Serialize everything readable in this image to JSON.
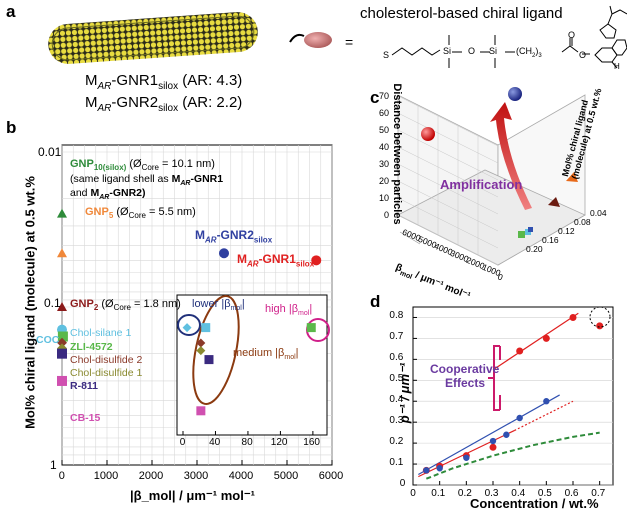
{
  "panels": {
    "a": "a",
    "b": "b",
    "c": "c",
    "d": "d"
  },
  "panel_a": {
    "ligand_title": "cholesterol-based chiral ligand",
    "eq": "=",
    "gnr1_label": "M",
    "gnr1_sub": "AR",
    "gnr1_name": "-GNR1",
    "gnr1_silox": "silox",
    "gnr1_ar": "(AR: 4.3)",
    "gnr2_label": "M",
    "gnr2_sub": "AR",
    "gnr2_name": "-GNR2",
    "gnr2_silox": "silox",
    "gnr2_ar": "(AR: 2.2)",
    "chem_S": "S",
    "chem_O1": "O",
    "chem_Si1": "Si",
    "chem_O2": "O",
    "chem_Si2": "Si",
    "chem_chain": "(CH",
    "chem_chain_sub": "2",
    "chem_chain_end": ")",
    "chem_chain_n": "3",
    "chem_O3": "O",
    "chem_O4": "O",
    "chem_H": "H"
  },
  "chart_data": [
    {
      "type": "scatter",
      "panel": "b",
      "xlabel": "|β_mol| / μm⁻¹ mol⁻¹",
      "ylabel": "Mol% chiral ligand (molecule) at 0.5 wt.%",
      "x_ticks": [
        "0",
        "1000",
        "2000",
        "3000",
        "4000",
        "5000",
        "6000"
      ],
      "y_ticks": [
        "0.01",
        "0.1",
        "1"
      ],
      "xlim": [
        0,
        6000
      ],
      "ylim": [
        0.01,
        1
      ],
      "yscale": "log-inverted",
      "points": [
        {
          "name": "GNP10(silox)",
          "x": 0,
          "y": 0.025,
          "color": "#2e8b3a",
          "marker": "triangle"
        },
        {
          "name": "GNP5",
          "x": 0,
          "y": 0.045,
          "color": "#f0883a",
          "marker": "triangle"
        },
        {
          "name": "GNP2",
          "x": 0,
          "y": 0.1,
          "color": "#8b1a1a",
          "marker": "triangle"
        },
        {
          "name": "MAR-GNR2silox",
          "x": 3600,
          "y": 0.045,
          "color": "#3040a0",
          "marker": "circle"
        },
        {
          "name": "MAR-GNR1silox",
          "x": 5650,
          "y": 0.05,
          "color": "#e02020",
          "marker": "circle"
        },
        {
          "name": "Chol-silane 1",
          "x": 0,
          "y": 0.14,
          "color": "#5fc0e0",
          "marker": "circle"
        },
        {
          "name": "ZLI-4572",
          "x": 20,
          "y": 0.155,
          "color": "#5ab84a",
          "marker": "square"
        },
        {
          "name": "Chol-disulfide 2",
          "x": 0,
          "y": 0.17,
          "color": "#8b3a2a",
          "marker": "diamond"
        },
        {
          "name": "Chol-disulfide 1",
          "x": 0,
          "y": 0.185,
          "color": "#8a8a30",
          "marker": "diamond"
        },
        {
          "name": "R-811",
          "x": 0,
          "y": 0.2,
          "color": "#3a2a80",
          "marker": "square"
        },
        {
          "name": "CB-15",
          "x": 0,
          "y": 0.3,
          "color": "#d050b0",
          "marker": "square"
        }
      ],
      "labels": {
        "gnp10": "GNP",
        "gnp10_sub": "10(silox)",
        "gnp10_core": "(Ø",
        "gnp10_core_sub": "Core",
        "gnp10_core_val": "= 10.1 nm)",
        "gnp10_note1": "(same ligand shell as",
        "gnp10_note_m1": "M",
        "gnp10_note_ar1": "AR",
        "gnp10_note_g1": "-GNR1",
        "gnp10_note2": "and",
        "gnp10_note_m2": "M",
        "gnp10_note_ar2": "AR",
        "gnp10_note_g2": "-GNR2)",
        "gnp5": "GNP",
        "gnp5_sub": "5",
        "gnp5_core": "(Ø",
        "gnp5_core_sub": "Core",
        "gnp5_core_val": "= 5.5 nm)",
        "gnp2": "GNP",
        "gnp2_sub": "2",
        "gnp2_core": "(Ø",
        "gnp2_core_sub": "Core",
        "gnp2_core_val": "= 1.8 nm)",
        "gnr2_m": "M",
        "gnr2_ar": "AR",
        "gnr2_g": "-GNR2",
        "gnr2_s": "silox",
        "gnr1_m": "M",
        "gnr1_ar": "AR",
        "gnr1_g": "-GNR1",
        "gnr1_s": "silox",
        "coc": "COC",
        "chol_silane": "Chol-silane 1",
        "zli": "ZLI-4572",
        "chol_d2": "Chol-disulfide 2",
        "chol_d1": "Chol-disulfide 1",
        "r811": "R-811",
        "cb15": "CB-15"
      }
    },
    {
      "type": "scatter",
      "panel": "b-inset",
      "x_ticks": [
        "0",
        "40",
        "80",
        "120",
        "160"
      ],
      "xlim": [
        0,
        170
      ],
      "labels": {
        "lower": "lower |β",
        "lower_sub": "mol",
        "lower_end": "|",
        "high": "high |β",
        "high_sub": "mol",
        "high_end": "|",
        "medium": "medium |β",
        "medium_sub": "mol",
        "medium_end": "|"
      },
      "points": [
        {
          "name": "Chol-silane 1",
          "x": 5,
          "y": 0.2,
          "color": "#5fc0e0",
          "marker": "diamond"
        },
        {
          "name": "COC",
          "x": 28,
          "y": 0.2,
          "color": "#5fc0e0",
          "marker": "square"
        },
        {
          "name": "Chol-disulfide 2",
          "x": 22,
          "y": 0.32,
          "color": "#8b3a2a",
          "marker": "diamond"
        },
        {
          "name": "Chol-disulfide 1",
          "x": 22,
          "y": 0.38,
          "color": "#8a8a30",
          "marker": "diamond"
        },
        {
          "name": "R-811",
          "x": 32,
          "y": 0.45,
          "color": "#3a2a80",
          "marker": "square"
        },
        {
          "name": "CB-15",
          "x": 22,
          "y": 0.85,
          "color": "#d050b0",
          "marker": "square"
        },
        {
          "name": "ZLI-4572",
          "x": 158,
          "y": 0.2,
          "color": "#5ab84a",
          "marker": "square"
        }
      ]
    },
    {
      "type": "scatter",
      "panel": "c",
      "zlabel": "Distance between particles",
      "xlabel": "β",
      "xlabel_sub": "mol",
      "xlabel_end": "/ μm⁻¹ mol⁻¹",
      "ylabel": "Mol% chiral ligand (molecule) at 0.5 wt.%",
      "z_ticks": [
        "0",
        "10",
        "20",
        "30",
        "40",
        "50",
        "60",
        "70"
      ],
      "x_ticks": [
        "6000",
        "5000",
        "4000",
        "3000",
        "2000",
        "1000",
        "0"
      ],
      "y_ticks": [
        "0.04",
        "0.08",
        "0.12",
        "0.16",
        "0.20"
      ],
      "annotation": "Amplification"
    },
    {
      "type": "scatter",
      "panel": "d",
      "ylabel": "p⁻¹ / μm⁻¹",
      "xlabel": "Concentration / wt.%",
      "x_ticks": [
        "0",
        "0.1",
        "0.2",
        "0.3",
        "0.4",
        "0.5",
        "0.6",
        "0.7"
      ],
      "y_ticks": [
        "0",
        "0.1",
        "0.2",
        "0.3",
        "0.4",
        "0.5",
        "0.6",
        "0.7",
        "0.8"
      ],
      "xlim": [
        0,
        0.75
      ],
      "ylim": [
        0,
        0.85
      ],
      "annotation1": "Cooperative",
      "annotation2": "Effects",
      "series": [
        {
          "color": "#e02020",
          "x": [
            0.05,
            0.1,
            0.2,
            0.3,
            0.4,
            0.5,
            0.6,
            0.7
          ],
          "y": [
            0.07,
            0.09,
            0.14,
            0.18,
            0.64,
            0.7,
            0.8,
            0.76
          ]
        },
        {
          "color": "#3050b0",
          "x": [
            0.05,
            0.1,
            0.2,
            0.3,
            0.35,
            0.4,
            0.5
          ],
          "y": [
            0.07,
            0.08,
            0.13,
            0.21,
            0.24,
            0.32,
            0.4
          ]
        },
        {
          "color": "#2e8b3a",
          "x": [
            0.05,
            0.15,
            0.3,
            0.45,
            0.6,
            0.7
          ],
          "y": [
            0.03,
            0.08,
            0.14,
            0.19,
            0.23,
            0.25
          ]
        }
      ]
    }
  ]
}
